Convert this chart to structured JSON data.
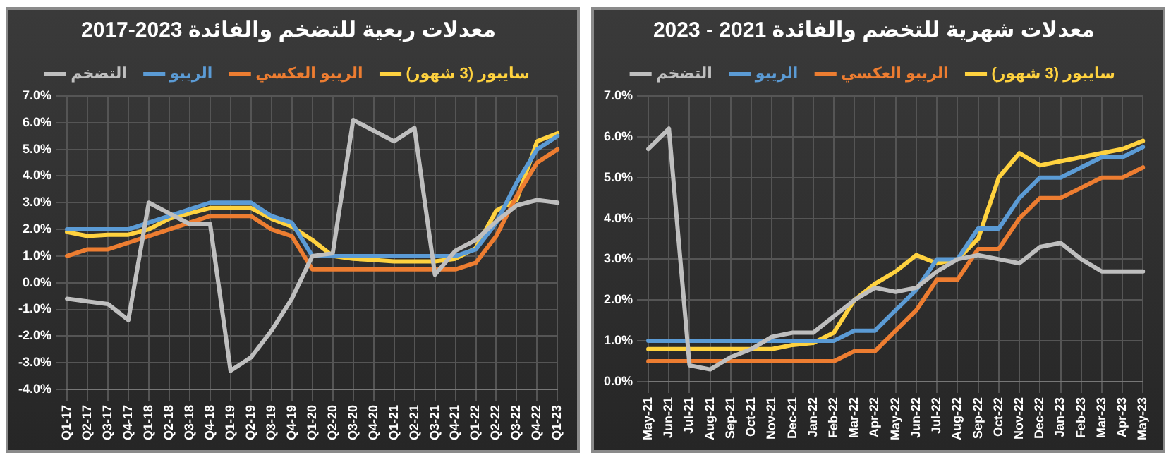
{
  "chart_data": [
    {
      "type": "line",
      "title": "معدلات ربعية للتضخم والفائدة 2023-2017",
      "categories": [
        "Q1-17",
        "Q2-17",
        "Q3-17",
        "Q4-17",
        "Q1-18",
        "Q2-18",
        "Q3-18",
        "Q4-18",
        "Q1-19",
        "Q2-19",
        "Q3-19",
        "Q4-19",
        "Q1-20",
        "Q2-20",
        "Q3-20",
        "Q4-20",
        "Q1-21",
        "Q2-21",
        "Q3-21",
        "Q4-21",
        "Q1-22",
        "Q2-22",
        "Q3-22",
        "Q4-22",
        "Q1-23"
      ],
      "series": [
        {
          "name": "التضخم",
          "color": "#bfbfbf",
          "values": [
            -0.6,
            -0.7,
            -0.8,
            -1.4,
            3.0,
            2.6,
            2.2,
            2.2,
            -3.3,
            -2.8,
            -1.8,
            -0.6,
            1.0,
            1.1,
            6.1,
            5.7,
            5.3,
            5.8,
            0.3,
            1.2,
            1.6,
            2.3,
            2.9,
            3.1,
            3.0
          ]
        },
        {
          "name": "الريبو",
          "color": "#5b9bd5",
          "values": [
            2.0,
            2.0,
            2.0,
            2.0,
            2.25,
            2.5,
            2.75,
            3.0,
            3.0,
            3.0,
            2.5,
            2.25,
            1.0,
            1.0,
            1.0,
            1.0,
            1.0,
            1.0,
            1.0,
            1.0,
            1.25,
            2.25,
            3.75,
            5.0,
            5.5
          ]
        },
        {
          "name": "الريبو العكسي",
          "color": "#ed7d31",
          "values": [
            1.0,
            1.25,
            1.25,
            1.5,
            1.75,
            2.0,
            2.25,
            2.5,
            2.5,
            2.5,
            2.0,
            1.75,
            0.5,
            0.5,
            0.5,
            0.5,
            0.5,
            0.5,
            0.5,
            0.5,
            0.75,
            1.75,
            3.25,
            4.5,
            5.0
          ]
        },
        {
          "name": "سايبور (3 شهور)",
          "color": "#ffd23f",
          "values": [
            1.9,
            1.75,
            1.8,
            1.8,
            2.0,
            2.4,
            2.6,
            2.8,
            2.8,
            2.8,
            2.4,
            2.1,
            1.6,
            1.0,
            0.9,
            0.85,
            0.8,
            0.8,
            0.8,
            0.9,
            1.3,
            2.7,
            3.1,
            5.3,
            5.6
          ]
        }
      ],
      "ylim": [
        -4,
        7
      ],
      "yticks": [
        {
          "value": -4,
          "label": "-4.0%"
        },
        {
          "value": -3,
          "label": "-3.0%"
        },
        {
          "value": -2,
          "label": "-2.0%"
        },
        {
          "value": -1,
          "label": "-1.0%"
        },
        {
          "value": 0,
          "label": "0.0%"
        },
        {
          "value": 1,
          "label": "1.0%"
        },
        {
          "value": 2,
          "label": "2.0%"
        },
        {
          "value": 3,
          "label": "3.0%"
        },
        {
          "value": 4,
          "label": "4.0%"
        },
        {
          "value": 5,
          "label": "5.0%"
        },
        {
          "value": 6,
          "label": "6.0%"
        },
        {
          "value": 7,
          "label": "7.0%"
        }
      ],
      "grid": true,
      "legend": "top",
      "marker": "none",
      "line_style": "solid"
    },
    {
      "type": "line",
      "title": "معدلات شهرية للتخضم والفائدة 2021 - 2023",
      "categories": [
        "May-21",
        "Jun-21",
        "Jul-21",
        "Aug-21",
        "Sep-21",
        "Oct-21",
        "Nov-21",
        "Dec-21",
        "Jan-22",
        "Feb-22",
        "Mar-22",
        "Apr-22",
        "May-22",
        "Jun-22",
        "Jul-22",
        "Aug-22",
        "Sep-22",
        "Oct-22",
        "Nov-22",
        "Dec-22",
        "Jan-23",
        "Feb-23",
        "Mar-23",
        "Apr-23",
        "May-23"
      ],
      "series": [
        {
          "name": "التضخم",
          "color": "#bfbfbf",
          "values": [
            5.7,
            6.2,
            0.4,
            0.3,
            0.6,
            0.8,
            1.1,
            1.2,
            1.2,
            1.6,
            2.0,
            2.3,
            2.2,
            2.3,
            2.7,
            3.0,
            3.1,
            3.0,
            2.9,
            3.3,
            3.4,
            3.0,
            2.7,
            2.7,
            2.7
          ]
        },
        {
          "name": "الريبو",
          "color": "#5b9bd5",
          "values": [
            1.0,
            1.0,
            1.0,
            1.0,
            1.0,
            1.0,
            1.0,
            1.0,
            1.0,
            1.0,
            1.25,
            1.25,
            1.75,
            2.25,
            3.0,
            3.0,
            3.75,
            3.75,
            4.5,
            5.0,
            5.0,
            5.25,
            5.5,
            5.5,
            5.75
          ]
        },
        {
          "name": "الريبو العكسي",
          "color": "#ed7d31",
          "values": [
            0.5,
            0.5,
            0.5,
            0.5,
            0.5,
            0.5,
            0.5,
            0.5,
            0.5,
            0.5,
            0.75,
            0.75,
            1.25,
            1.75,
            2.5,
            2.5,
            3.25,
            3.25,
            4.0,
            4.5,
            4.5,
            4.75,
            5.0,
            5.0,
            5.25
          ]
        },
        {
          "name": "سايبور (3 شهور)",
          "color": "#ffd23f",
          "values": [
            0.8,
            0.8,
            0.8,
            0.8,
            0.8,
            0.8,
            0.8,
            0.9,
            0.95,
            1.2,
            2.0,
            2.4,
            2.7,
            3.1,
            2.9,
            3.0,
            3.5,
            5.0,
            5.6,
            5.3,
            5.4,
            5.5,
            5.6,
            5.7,
            5.9
          ]
        }
      ],
      "ylim": [
        0,
        7
      ],
      "yticks": [
        {
          "value": 0,
          "label": "0.0%"
        },
        {
          "value": 1,
          "label": "1.0%"
        },
        {
          "value": 2,
          "label": "2.0%"
        },
        {
          "value": 3,
          "label": "3.0%"
        },
        {
          "value": 4,
          "label": "4.0%"
        },
        {
          "value": 5,
          "label": "5.0%"
        },
        {
          "value": 6,
          "label": "6.0%"
        },
        {
          "value": 7,
          "label": "7.0%"
        }
      ],
      "grid": true,
      "legend": "top",
      "marker": "none",
      "line_style": "solid"
    }
  ]
}
